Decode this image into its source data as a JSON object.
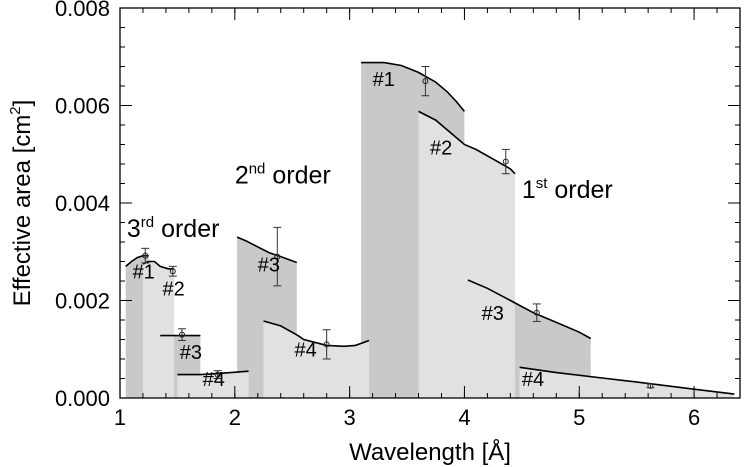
{
  "chart_data": {
    "type": "area",
    "xlabel": "Wavelength [Å]",
    "ylabel": "Effective area [cm²]",
    "ylabel_parts": {
      "main": "Effective area [cm",
      "sup": "2",
      "close": "]"
    },
    "xlim": [
      1.0,
      6.4
    ],
    "ylim": [
      0.0,
      0.008
    ],
    "x_ticks": [
      1,
      2,
      3,
      4,
      5,
      6
    ],
    "x_tick_labels": [
      "1",
      "2",
      "3",
      "4",
      "5",
      "6"
    ],
    "y_ticks": [
      0.0,
      0.002,
      0.004,
      0.006,
      0.008
    ],
    "y_tick_labels": [
      "0.000",
      "0.002",
      "0.004",
      "0.006",
      "0.008"
    ],
    "colors": {
      "dark_fill": "#c9c9c9",
      "light_fill": "#e1e1e1",
      "line": "#000000"
    },
    "series": [
      {
        "name": "#1",
        "order": 3,
        "label_at": [
          1.11,
          0.00245
        ],
        "fill": "dark",
        "curve": [
          [
            1.05,
            0.0027
          ],
          [
            1.1,
            0.0028
          ],
          [
            1.15,
            0.00288
          ],
          [
            1.2,
            0.00292
          ],
          [
            1.25,
            0.00292
          ]
        ],
        "error_bar": {
          "x": 1.22,
          "y": 0.00292,
          "err": 0.00015
        }
      },
      {
        "name": "#2",
        "order": 3,
        "label_at": [
          1.37,
          0.0021
        ],
        "fill": "light",
        "curve": [
          [
            1.2,
            0.00275
          ],
          [
            1.25,
            0.0028
          ],
          [
            1.3,
            0.0028
          ],
          [
            1.35,
            0.0027
          ],
          [
            1.42,
            0.00265
          ],
          [
            1.47,
            0.00265
          ]
        ],
        "error_bar": {
          "x": 1.46,
          "y": 0.0026,
          "err": 0.0001
        }
      },
      {
        "name": "#3",
        "order": 3,
        "label_at": [
          1.52,
          0.0008
        ],
        "fill": "dark",
        "curve": [
          [
            1.35,
            0.00128
          ],
          [
            1.45,
            0.00128
          ],
          [
            1.55,
            0.00128
          ],
          [
            1.7,
            0.00128
          ]
        ],
        "error_bar": {
          "x": 1.54,
          "y": 0.0013,
          "err": 0.00012
        }
      },
      {
        "name": "#4",
        "order": 3,
        "label_at": [
          1.72,
          0.00025
        ],
        "fill": "light",
        "curve": [
          [
            1.5,
            0.00048
          ],
          [
            1.7,
            0.00048
          ],
          [
            1.85,
            0.0005
          ],
          [
            2.12,
            0.00055
          ]
        ],
        "error_bar": {
          "x": 1.85,
          "y": 0.00048,
          "err": 8e-05
        }
      },
      {
        "name": "#3",
        "order": 2,
        "label_at": [
          2.2,
          0.0026
        ],
        "fill": "dark",
        "curve": [
          [
            2.02,
            0.0033
          ],
          [
            2.1,
            0.00322
          ],
          [
            2.2,
            0.0031
          ],
          [
            2.3,
            0.00298
          ],
          [
            2.4,
            0.0029
          ],
          [
            2.54,
            0.00278
          ]
        ],
        "error_bar": {
          "x": 2.37,
          "y": 0.0029,
          "err": 0.0006
        }
      },
      {
        "name": "#4",
        "order": 2,
        "label_at": [
          2.52,
          0.00085
        ],
        "fill": "light",
        "curve": [
          [
            2.25,
            0.00158
          ],
          [
            2.4,
            0.00148
          ],
          [
            2.55,
            0.00128
          ],
          [
            2.6,
            0.0012
          ],
          [
            2.8,
            0.00108
          ],
          [
            2.95,
            0.00106
          ],
          [
            3.05,
            0.00108
          ],
          [
            3.17,
            0.00118
          ]
        ],
        "error_bar": {
          "x": 2.8,
          "y": 0.0011,
          "err": 0.0003
        }
      },
      {
        "name": "#1",
        "order": 1,
        "label_at": [
          3.2,
          0.0064
        ],
        "fill": "dark",
        "curve": [
          [
            3.1,
            0.00688
          ],
          [
            3.2,
            0.00688
          ],
          [
            3.3,
            0.00688
          ],
          [
            3.45,
            0.00682
          ],
          [
            3.6,
            0.00668
          ],
          [
            3.75,
            0.00648
          ],
          [
            3.85,
            0.00628
          ],
          [
            3.93,
            0.00608
          ],
          [
            4.0,
            0.00588
          ]
        ],
        "error_bar": {
          "x": 3.66,
          "y": 0.0065,
          "err": 0.0003
        }
      },
      {
        "name": "#2",
        "order": 1,
        "label_at": [
          3.7,
          0.005
        ],
        "fill": "light",
        "curve": [
          [
            3.6,
            0.00588
          ],
          [
            3.75,
            0.0057
          ],
          [
            3.85,
            0.0055
          ],
          [
            3.95,
            0.0053
          ],
          [
            4.0,
            0.0052
          ],
          [
            4.1,
            0.0051
          ],
          [
            4.25,
            0.0049
          ],
          [
            4.4,
            0.0047
          ],
          [
            4.44,
            0.0046
          ]
        ],
        "error_bar": {
          "x": 4.36,
          "y": 0.00485,
          "err": 0.00025
        }
      },
      {
        "name": "#3",
        "order": 1,
        "label_at": [
          4.15,
          0.0016
        ],
        "fill": "dark",
        "curve": [
          [
            4.03,
            0.00242
          ],
          [
            4.2,
            0.00225
          ],
          [
            4.4,
            0.002
          ],
          [
            4.6,
            0.00175
          ],
          [
            4.8,
            0.00155
          ],
          [
            5.0,
            0.00135
          ],
          [
            5.1,
            0.00122
          ]
        ],
        "error_bar": {
          "x": 4.63,
          "y": 0.00175,
          "err": 0.00018
        }
      },
      {
        "name": "#4",
        "order": 1,
        "label_at": [
          4.5,
          0.00025
        ],
        "fill": "light",
        "curve": [
          [
            4.48,
            0.00063
          ],
          [
            4.8,
            0.00052
          ],
          [
            5.2,
            0.00041
          ],
          [
            5.6,
            0.0003
          ],
          [
            6.0,
            0.00018
          ],
          [
            6.35,
            8e-05
          ]
        ],
        "error_bar": {
          "x": 5.62,
          "y": 0.00025,
          "err": 4e-05
        }
      }
    ],
    "annotations": [
      {
        "main": "3",
        "sup": "rd",
        "rest": " order",
        "at": [
          1.06,
          0.0033
        ]
      },
      {
        "main": "2",
        "sup": "nd",
        "rest": " order",
        "at": [
          2.0,
          0.0044
        ]
      },
      {
        "main": "1",
        "sup": "st",
        "rest": " order",
        "at": [
          4.5,
          0.0041
        ]
      }
    ]
  }
}
